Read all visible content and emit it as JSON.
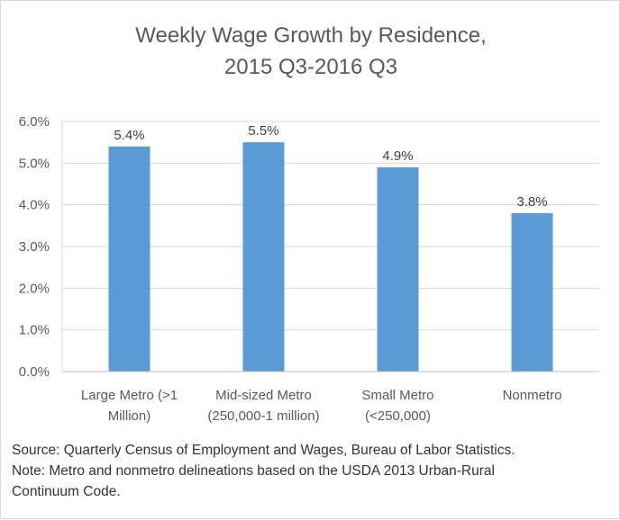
{
  "chart_data": {
    "type": "bar",
    "title": [
      "Weekly Wage Growth by Residence,",
      "2015 Q3-2016 Q3"
    ],
    "categories": [
      [
        "Large Metro (>1",
        "Million)"
      ],
      [
        "Mid-sized Metro",
        "(250,000-1 million)"
      ],
      [
        "Small Metro",
        "(<250,000)"
      ],
      [
        "Nonmetro"
      ]
    ],
    "values": [
      5.4,
      5.5,
      4.9,
      3.8
    ],
    "data_labels": [
      "5.4%",
      "5.5%",
      "4.9%",
      "3.8%"
    ],
    "ylim": [
      0,
      6
    ],
    "yticks": [
      0,
      1,
      2,
      3,
      4,
      5,
      6
    ],
    "ytick_labels": [
      "0.0%",
      "1.0%",
      "2.0%",
      "3.0%",
      "4.0%",
      "5.0%",
      "6.0%"
    ],
    "xlabel": "",
    "ylabel": "",
    "grid": true,
    "legend": false,
    "bar_color": "#5b9bd5",
    "grid_color": "#d9d9d9"
  },
  "notes": {
    "source": "Source: Quarterly Census of Employment and Wages, Bureau of Labor Statistics.",
    "note_line1": "Note: Metro and nonmetro delineations based on the USDA 2013 Urban-Rural",
    "note_line2": "Continuum Code."
  }
}
